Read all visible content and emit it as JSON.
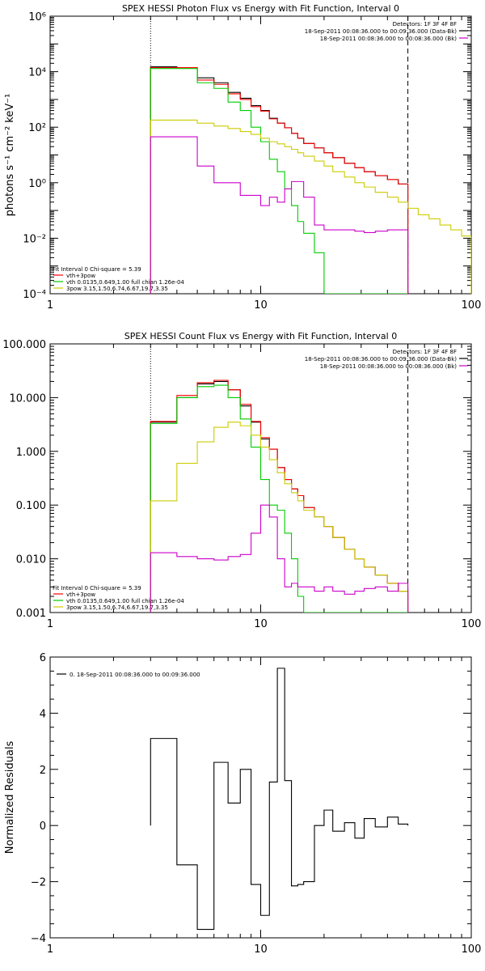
{
  "chart_data": [
    {
      "type": "line",
      "title": "SPEX HESSI Photon Flux vs Energy with Fit Function, Interval 0",
      "ylabel": "photons s⁻¹ cm⁻² keV⁻¹",
      "xlabel": "",
      "xscale": "log",
      "yscale": "log",
      "xlim": [
        1,
        100
      ],
      "ylim": [
        0.0001,
        1000000
      ],
      "xticks": [
        1,
        10,
        100
      ],
      "xtick_labels": [
        "1",
        "10",
        "100"
      ],
      "yticks": [
        0.0001,
        0.01,
        1,
        100,
        10000,
        1000000
      ],
      "ytick_labels": [
        "10⁻⁴",
        "10⁻²",
        "10⁰",
        "10²",
        "10⁴",
        "10⁶"
      ],
      "vlines": [
        {
          "x": 3,
          "style": "dotted"
        },
        {
          "x": 50,
          "style": "dashed"
        }
      ],
      "legend_top_right": [
        "Detectors: 1F 3F 4F 8F",
        "18-Sep-2011 00:08:36.000 to 00:09:36.000 (Data-Bk)",
        "18-Sep-2011 00:08:36.000 to 00:08:36.000 (Bk)"
      ],
      "legend_top_right_colors": [
        "",
        "#000000",
        "#cc00cc"
      ],
      "legend_bottom_left": [
        "Fit Interval 0   Chi-square = 5.39",
        "vth+3pow",
        "vth 0.0135,0.649,1.00  full chian 1.26e-04",
        "3pow 3.15,1.50,6.74,6.67,19.7,3.35"
      ],
      "legend_bottom_left_colors": [
        "",
        "#ff0000",
        "#00cc00",
        "#cccc00"
      ],
      "edges": [
        3,
        4,
        5,
        6,
        7,
        8,
        9,
        10,
        11,
        12,
        13,
        14,
        15,
        16,
        18,
        20,
        22,
        25,
        28,
        31,
        35,
        40,
        45,
        50,
        56,
        63,
        71,
        80,
        90,
        100
      ],
      "series": [
        {
          "name": "Data-Bk",
          "color": "#000000",
          "values": [
            15000,
            14000,
            6000,
            4000,
            1800,
            1100,
            600,
            400,
            210,
            140,
            95,
            60,
            40,
            26,
            18,
            12,
            8,
            5,
            3.5,
            2.5,
            1.8,
            1.3,
            0.9
          ]
        },
        {
          "name": "vth+3pow",
          "color": "#ff0000",
          "values": [
            14000,
            14000,
            5000,
            3500,
            1600,
            1000,
            550,
            380,
            200,
            140,
            95,
            60,
            40,
            26,
            18,
            12,
            8,
            5,
            3.5,
            2.5,
            1.8,
            1.3,
            0.9
          ]
        },
        {
          "name": "vth",
          "color": "#00cc00",
          "values": [
            13000,
            13000,
            4000,
            2500,
            800,
            400,
            100,
            30,
            7,
            2.5,
            0.6,
            0.15,
            0.04,
            0.015,
            0.003,
            0.0001,
            0.0001,
            0.0001,
            0.0001,
            0.0001,
            0.0001,
            0.0001,
            0.0001
          ]
        },
        {
          "name": "3pow",
          "color": "#cccc00",
          "values": [
            180,
            180,
            140,
            110,
            90,
            70,
            55,
            40,
            30,
            25,
            20,
            16,
            12,
            9,
            6,
            4,
            2.5,
            1.6,
            1.0,
            0.7,
            0.45,
            0.3,
            0.2,
            0.12,
            0.07,
            0.05,
            0.03,
            0.02,
            0.012
          ]
        },
        {
          "name": "Bk",
          "color": "#cc00cc",
          "values": [
            45,
            45,
            4,
            1,
            1,
            0.35,
            0.35,
            0.15,
            0.3,
            0.2,
            0.6,
            1.1,
            1.1,
            0.3,
            0.03,
            0.02,
            0.02,
            0.02,
            0.018,
            0.016,
            0.018,
            0.02,
            0.02
          ]
        }
      ]
    },
    {
      "type": "line",
      "title": "SPEX HESSI Count Flux vs Energy with Fit Function, Interval 0",
      "xlabel": "",
      "ylabel": "",
      "xscale": "log",
      "yscale": "log",
      "xlim": [
        1,
        100
      ],
      "ylim": [
        0.001,
        100
      ],
      "xticks": [
        1,
        10,
        100
      ],
      "xtick_labels": [
        "1",
        "10",
        "100"
      ],
      "yticks": [
        0.001,
        0.01,
        0.1,
        1,
        10,
        100
      ],
      "ytick_labels": [
        "0.001",
        "0.010",
        "0.100",
        "1.000",
        "10.000",
        "100.000"
      ],
      "vlines": [
        {
          "x": 3,
          "style": "dotted"
        },
        {
          "x": 50,
          "style": "dashed"
        }
      ],
      "legend_top_right": [
        "Detectors: 1F 3F 4F 8F",
        "18-Sep-2011 00:08:36.000 to 00:09:36.000 (Data-Bk)",
        "18-Sep-2011 00:08:36.000 to 00:08:36.000 (Bk)"
      ],
      "legend_top_right_colors": [
        "",
        "#000000",
        "#cc00cc"
      ],
      "legend_bottom_left": [
        "Fit Interval 0   Chi-square = 5.39",
        "vth+3pow",
        "vth 0.0135,0.649,1.00  full chian 1.26e-04",
        "3pow 3.15,1.50,6.74,6.67,19.7,3.35"
      ],
      "legend_bottom_left_colors": [
        "",
        "#ff0000",
        "#00cc00",
        "#cccc00"
      ],
      "edges": [
        3,
        4,
        5,
        6,
        7,
        8,
        9,
        10,
        11,
        12,
        13,
        14,
        15,
        16,
        18,
        20,
        22,
        25,
        28,
        31,
        35,
        40,
        45,
        50
      ],
      "series": [
        {
          "name": "Data-Bk",
          "color": "#000000",
          "values": [
            3.5,
            10,
            18,
            20,
            14,
            7,
            3.5,
            1.7,
            1.1,
            0.5,
            0.3,
            0.2,
            0.15,
            0.09,
            0.06,
            0.04,
            0.025,
            0.015,
            0.01,
            0.007,
            0.005,
            0.0035,
            0.0025
          ]
        },
        {
          "name": "vth+3pow",
          "color": "#ff0000",
          "values": [
            3.6,
            11,
            19,
            21,
            14,
            7.5,
            3.6,
            1.8,
            1.1,
            0.5,
            0.3,
            0.2,
            0.15,
            0.09,
            0.06,
            0.04,
            0.025,
            0.015,
            0.01,
            0.007,
            0.005,
            0.0035,
            0.0025
          ]
        },
        {
          "name": "vth",
          "color": "#00cc00",
          "values": [
            3.3,
            10,
            16,
            17,
            10,
            4,
            1.2,
            0.3,
            0.1,
            0.08,
            0.03,
            0.01,
            0.002,
            0.001,
            0.001,
            0.001,
            0.001,
            0.001,
            0.001,
            0.001,
            0.001,
            0.001,
            0.001
          ]
        },
        {
          "name": "3pow",
          "color": "#cccc00",
          "values": [
            0.12,
            0.6,
            1.5,
            2.8,
            3.5,
            3,
            2,
            1.2,
            0.7,
            0.4,
            0.25,
            0.17,
            0.12,
            0.08,
            0.06,
            0.04,
            0.025,
            0.015,
            0.01,
            0.007,
            0.005,
            0.0035,
            0.0025
          ]
        },
        {
          "name": "Bk",
          "color": "#cc00cc",
          "values": [
            0.013,
            0.011,
            0.01,
            0.0095,
            0.011,
            0.012,
            0.03,
            0.1,
            0.06,
            0.01,
            0.003,
            0.0035,
            0.003,
            0.003,
            0.0025,
            0.003,
            0.0025,
            0.0022,
            0.0025,
            0.0028,
            0.003,
            0.0025,
            0.0035
          ]
        }
      ]
    },
    {
      "type": "line",
      "title": "",
      "ylabel": "Normalized Residuals",
      "xlabel": "",
      "xscale": "log",
      "yscale": "linear",
      "xlim": [
        1,
        100
      ],
      "ylim": [
        -4,
        6
      ],
      "xticks": [
        1,
        10,
        100
      ],
      "xtick_labels": [
        "1",
        "10",
        "100"
      ],
      "yticks": [
        -4,
        -2,
        0,
        2,
        4,
        6
      ],
      "ytick_labels": [
        "−4",
        "−2",
        "0",
        "2",
        "4",
        "6"
      ],
      "legend": "0. 18-Sep-2011 00:08:36.000 to 00:09:36.000",
      "edges": [
        3,
        4,
        5,
        6,
        7,
        8,
        9,
        10,
        11,
        12,
        13,
        14,
        15,
        16,
        18,
        20,
        22,
        25,
        28,
        31,
        35,
        40,
        45,
        50
      ],
      "series": [
        {
          "name": "residuals",
          "color": "#000000",
          "values": [
            3.1,
            -1.4,
            -3.7,
            2.25,
            0.8,
            2.0,
            -2.1,
            -3.2,
            1.55,
            5.6,
            1.6,
            -2.15,
            -2.1,
            -2.0,
            0.0,
            0.55,
            -0.2,
            0.1,
            -0.45,
            0.25,
            -0.05,
            0.3,
            0.05
          ]
        }
      ]
    }
  ]
}
